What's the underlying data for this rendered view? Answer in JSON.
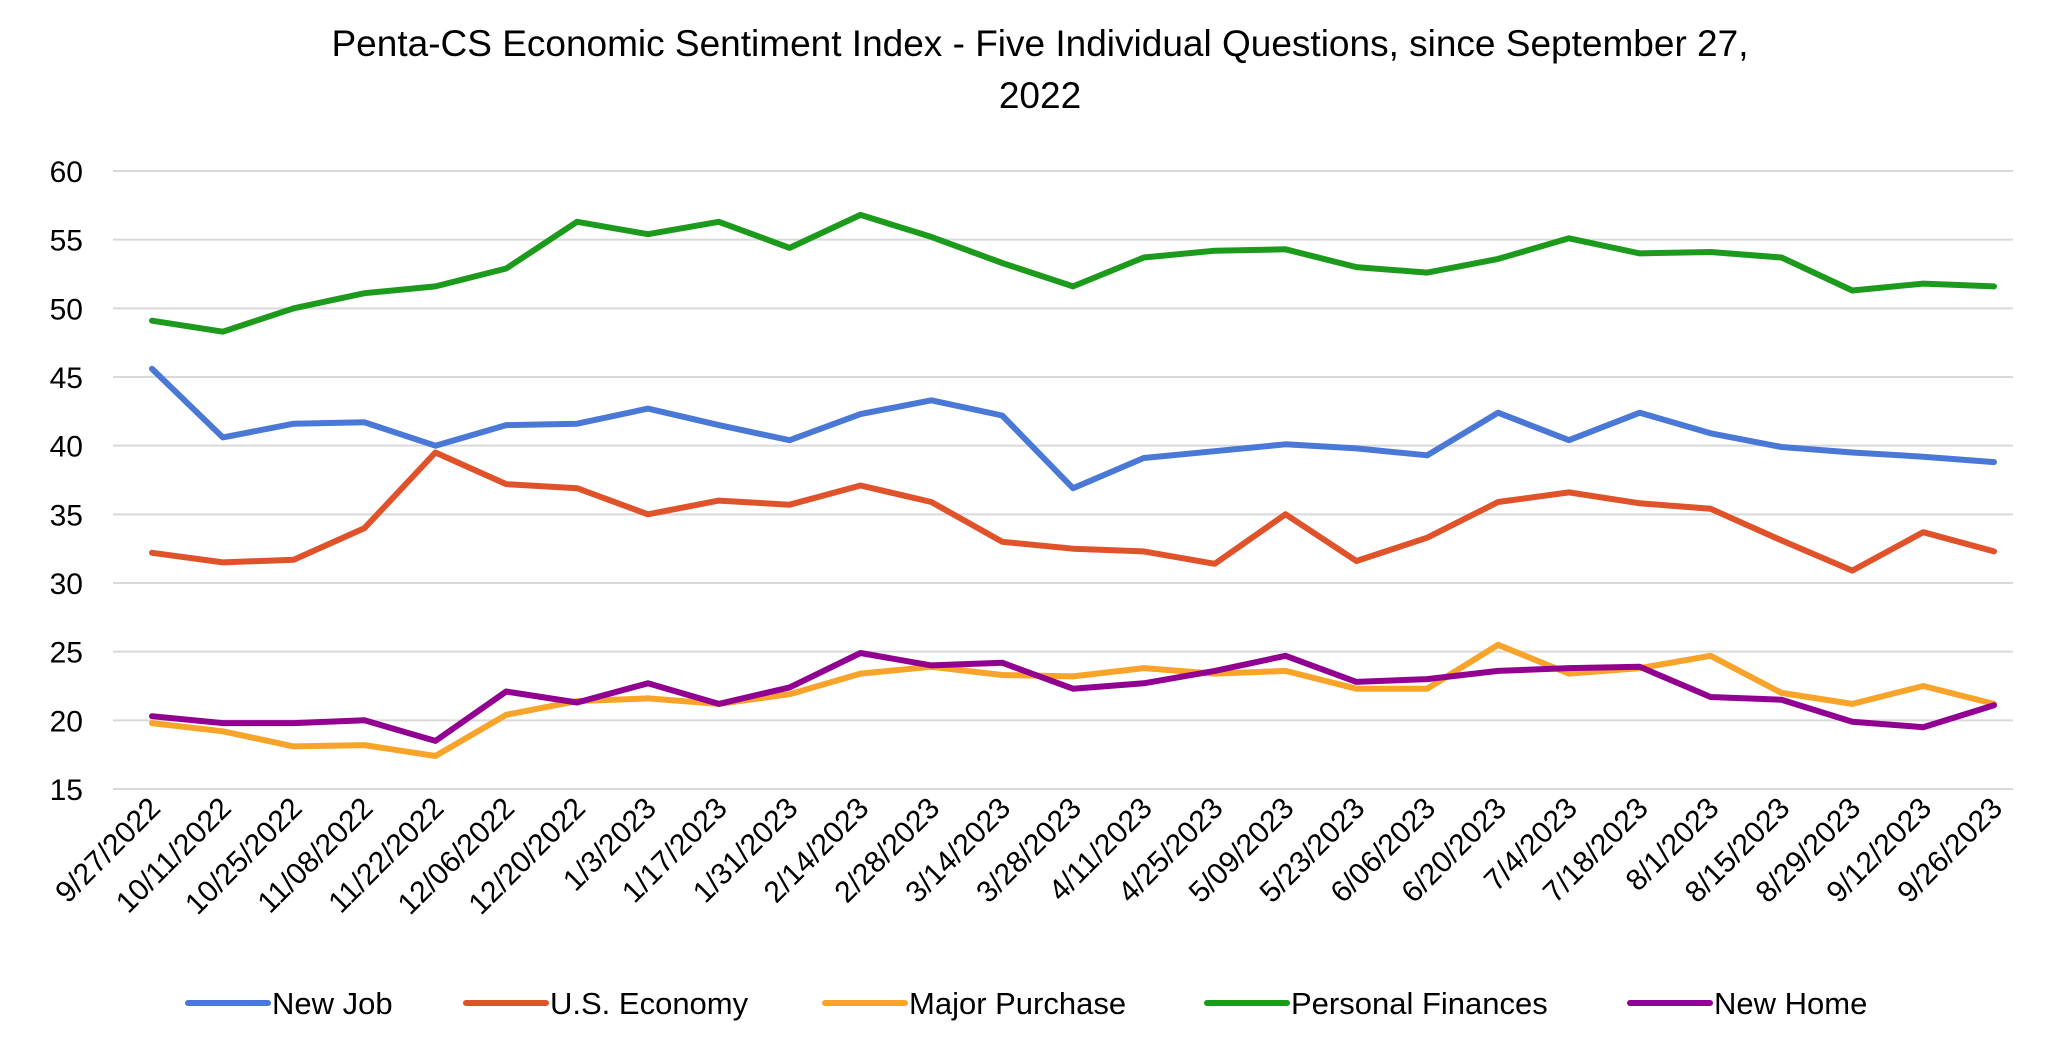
{
  "chart_data": {
    "type": "line",
    "title": "Penta-CS Economic Sentiment Index - Five Individual Questions, since September 27,",
    "title_line2": "2022",
    "xlabel": "",
    "ylabel": "",
    "ylim": [
      15,
      60
    ],
    "yticks": [
      15,
      20,
      25,
      30,
      35,
      40,
      45,
      50,
      55,
      60
    ],
    "grid": true,
    "legend_position": "bottom",
    "categories": [
      "9/27/2022",
      "10/11/2022",
      "10/25/2022",
      "11/08/2022",
      "11/22/2022",
      "12/06/2022",
      "12/20/2022",
      "1/3/2023",
      "1/17/2023",
      "1/31/2023",
      "2/14/2023",
      "2/28/2023",
      "3/14/2023",
      "3/28/2023",
      "4/11/2023",
      "4/25/2023",
      "5/09/2023",
      "5/23/2023",
      "6/06/2023",
      "6/20/2023",
      "7/4/2023",
      "7/18/2023",
      "8/1/2023",
      "8/15/2023",
      "8/29/2023",
      "9/12/2023",
      "9/26/2023"
    ],
    "series": [
      {
        "name": "New Job",
        "color": "#4a78d6",
        "values": [
          45.6,
          40.6,
          41.6,
          41.7,
          40.0,
          41.5,
          41.6,
          42.7,
          41.5,
          40.4,
          42.3,
          43.3,
          42.2,
          36.9,
          39.1,
          39.6,
          40.1,
          39.8,
          39.3,
          42.4,
          40.4,
          42.4,
          40.9,
          39.9,
          39.5,
          39.2,
          38.8
        ]
      },
      {
        "name": "U.S. Economy",
        "color": "#e0532a",
        "values": [
          32.2,
          31.5,
          31.7,
          34.0,
          39.5,
          37.2,
          36.9,
          35.0,
          36.0,
          35.7,
          37.1,
          35.9,
          33.0,
          32.5,
          32.3,
          31.4,
          35.0,
          31.6,
          33.3,
          35.9,
          36.6,
          35.8,
          35.4,
          33.1,
          30.9,
          33.7,
          32.3
        ]
      },
      {
        "name": "Major Purchase",
        "color": "#f8a42a",
        "values": [
          19.8,
          19.2,
          18.1,
          18.2,
          17.4,
          20.4,
          21.4,
          21.6,
          21.2,
          21.9,
          23.4,
          23.9,
          23.3,
          23.2,
          23.8,
          23.4,
          23.6,
          22.3,
          22.3,
          25.5,
          23.4,
          23.8,
          24.7,
          22.0,
          21.2,
          22.5,
          21.2
        ]
      },
      {
        "name": "Personal Finances",
        "color": "#1c9a1c",
        "values": [
          49.1,
          48.3,
          50.0,
          51.1,
          51.6,
          52.9,
          56.3,
          55.4,
          56.3,
          54.4,
          56.8,
          55.2,
          53.3,
          51.6,
          53.7,
          54.2,
          54.3,
          53.0,
          52.6,
          53.6,
          55.1,
          54.0,
          54.1,
          53.7,
          51.3,
          51.8,
          51.6
        ]
      },
      {
        "name": "New Home",
        "color": "#910091",
        "values": [
          20.3,
          19.8,
          19.8,
          20.0,
          18.5,
          22.1,
          21.3,
          22.7,
          21.2,
          22.4,
          24.9,
          24.0,
          24.2,
          22.3,
          22.7,
          23.6,
          24.7,
          22.8,
          23.0,
          23.6,
          23.8,
          23.9,
          21.7,
          21.5,
          19.9,
          19.5,
          21.1
        ]
      }
    ]
  }
}
